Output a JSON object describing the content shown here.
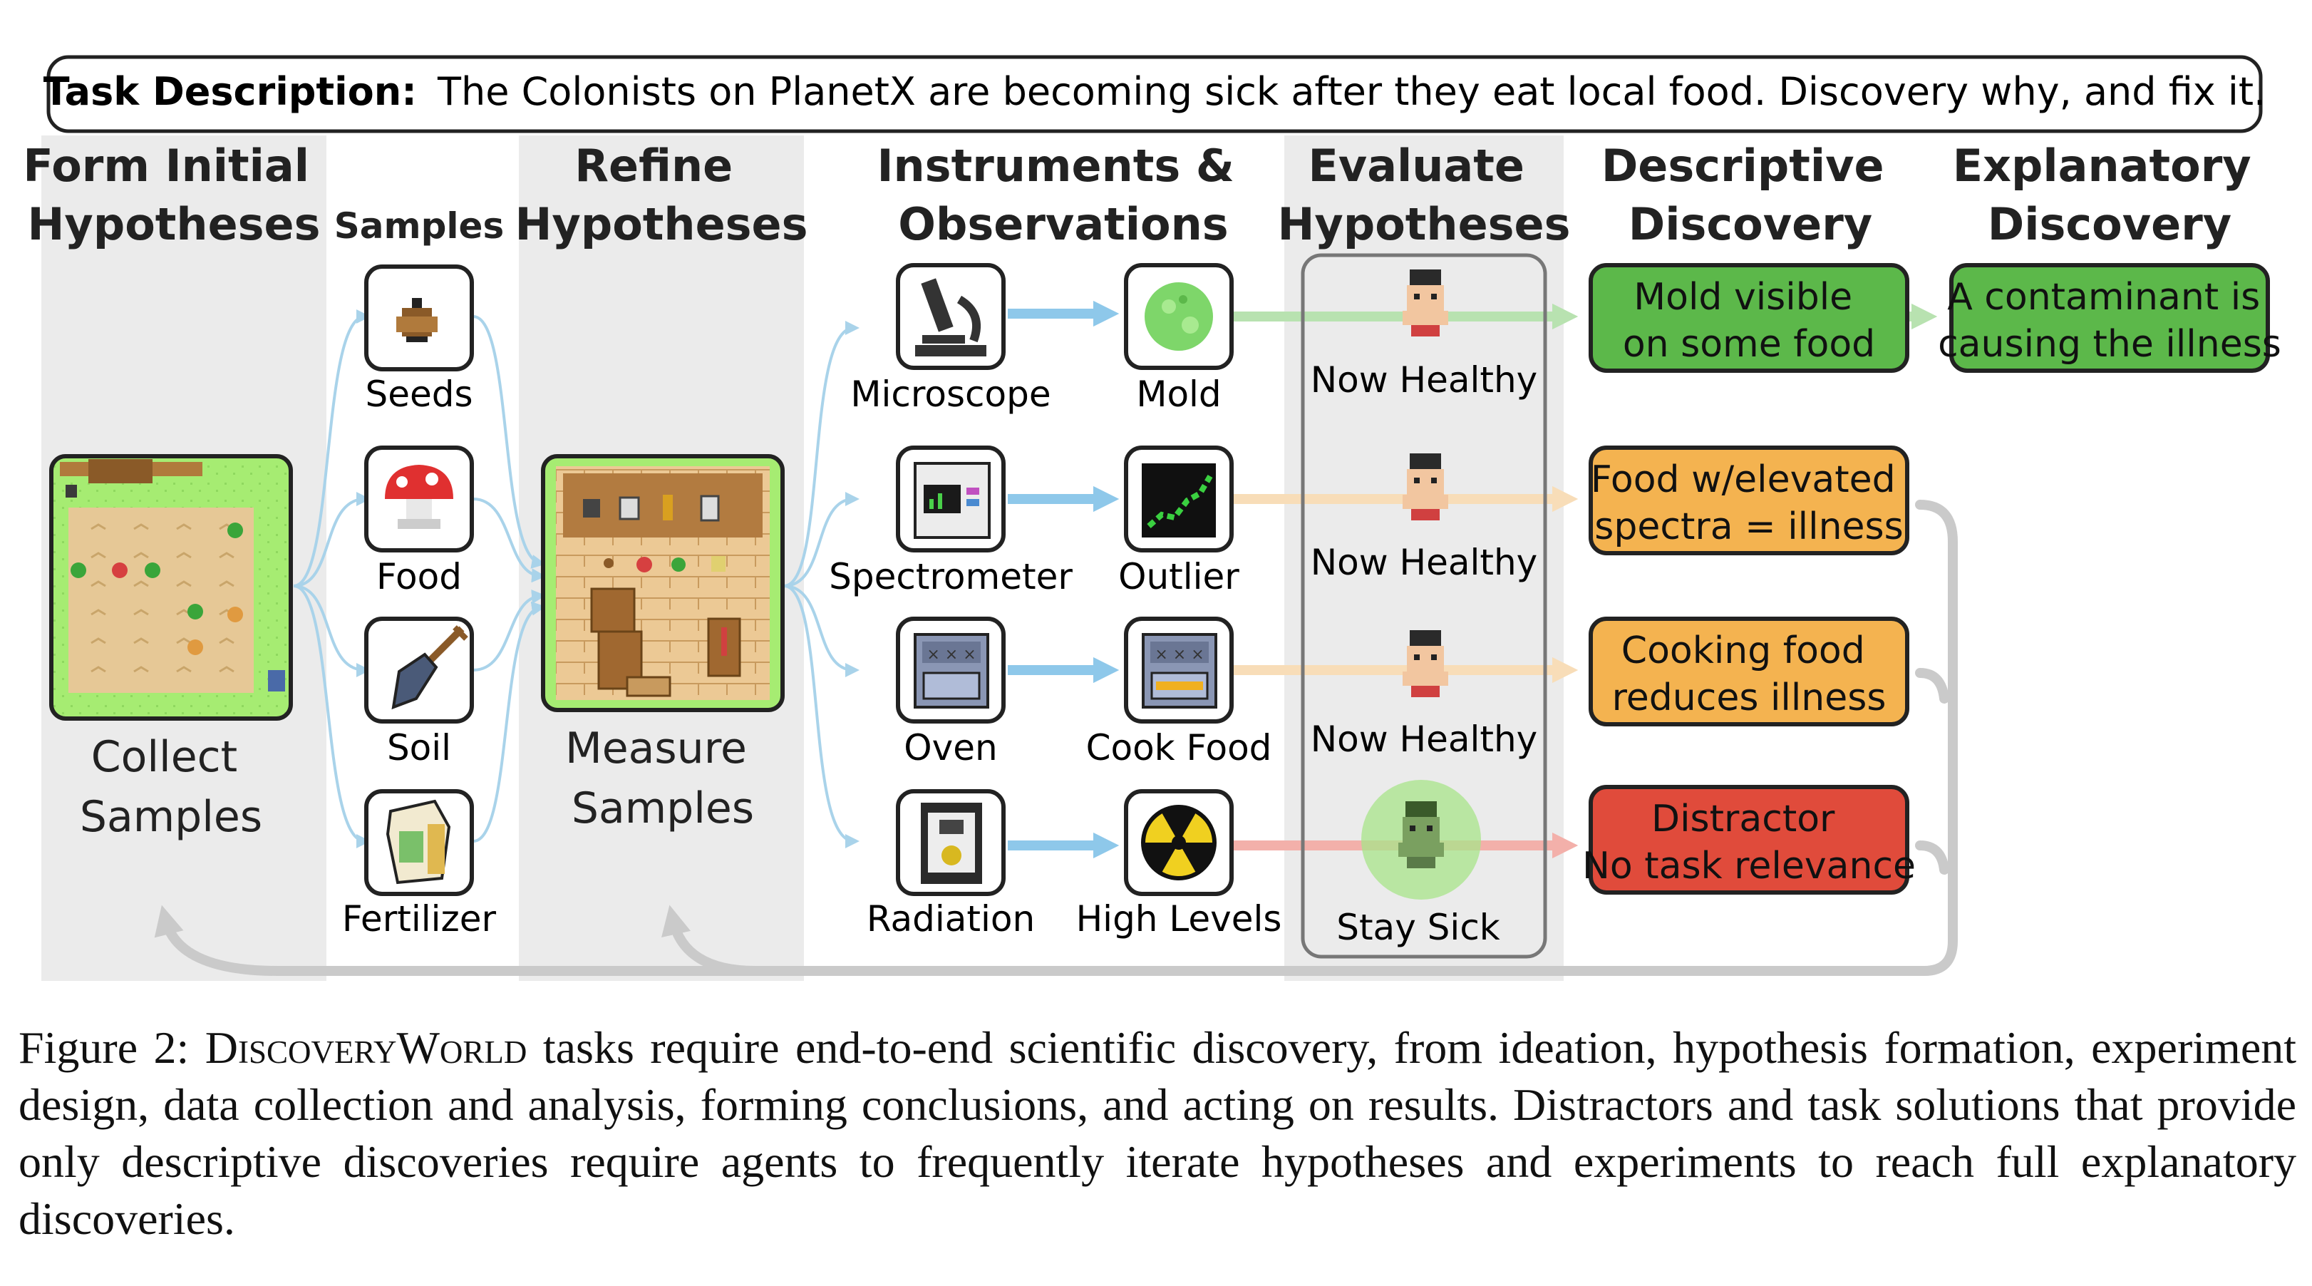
{
  "task": {
    "label": "Task Description:",
    "text": "The Colonists on PlanetX are becoming sick after they eat local food.  Discovery why, and fix it."
  },
  "columns": {
    "form_initial": [
      "Form Initial",
      "Hypotheses"
    ],
    "samples": "Samples",
    "refine": [
      "Refine",
      "Hypotheses"
    ],
    "instruments": [
      "Instruments &",
      "Observations"
    ],
    "evaluate": [
      "Evaluate",
      "Hypotheses"
    ],
    "descriptive": [
      "Descriptive",
      "Discovery"
    ],
    "explanatory": [
      "Explanatory",
      "Discovery"
    ]
  },
  "collect": [
    "Collect",
    "Samples"
  ],
  "measure": [
    "Measure",
    "Samples"
  ],
  "samples": [
    {
      "label": "Seeds",
      "icon": "seed-icon"
    },
    {
      "label": "Food",
      "icon": "mushroom-icon"
    },
    {
      "label": "Soil",
      "icon": "shovel-icon"
    },
    {
      "label": "Fertilizer",
      "icon": "fertilizer-bag-icon"
    }
  ],
  "instruments": [
    {
      "label": "Microscope",
      "icon": "microscope-icon"
    },
    {
      "label": "Spectrometer",
      "icon": "spectrometer-icon"
    },
    {
      "label": "Oven",
      "icon": "oven-icon"
    },
    {
      "label": "Radiation",
      "icon": "radiation-meter-icon"
    }
  ],
  "observations": [
    {
      "label": "Mold",
      "icon": "mold-icon"
    },
    {
      "label": "Outlier",
      "icon": "spectrum-plot-icon"
    },
    {
      "label": "Cook Food",
      "icon": "cooking-oven-icon"
    },
    {
      "label": "High Levels",
      "icon": "radiation-symbol-icon"
    }
  ],
  "evaluations": [
    "Now Healthy",
    "Now Healthy",
    "Now Healthy",
    "Stay Sick"
  ],
  "descriptive": [
    {
      "lines": [
        "Mold visible",
        "on some food"
      ],
      "color": "#5cb84a"
    },
    {
      "lines": [
        "Food w/elevated",
        "spectra = illness"
      ],
      "color": "#f4b350"
    },
    {
      "lines": [
        "Cooking food",
        "reduces illness"
      ],
      "color": "#f4b350"
    },
    {
      "lines": [
        "Distractor",
        "No task relevance"
      ],
      "color": "#e04b3b"
    }
  ],
  "explanatory": {
    "lines": [
      "A contaminant is",
      "causing the illness"
    ],
    "color": "#5cb84a"
  },
  "colors": {
    "panel": "#ebebeb",
    "flow_blue": "#a9d3ea",
    "arrow_blue": "#8ec8ea",
    "green_arrow": "#b8e2b0",
    "orange_arrow": "#f8ddb8",
    "red_arrow": "#f3b0aa",
    "feedback": "#cacaca"
  },
  "caption": {
    "prefix": "Figure 2: ",
    "name": "DiscoveryWorld",
    "text": " tasks require end-to-end scientific discovery, from ideation, hypothesis formation, experiment design, data collection and analysis, forming conclusions, and acting on results. Distractors and task solutions that provide only descriptive discoveries require agents to frequently iterate hypotheses and experiments to reach full explanatory discoveries."
  }
}
